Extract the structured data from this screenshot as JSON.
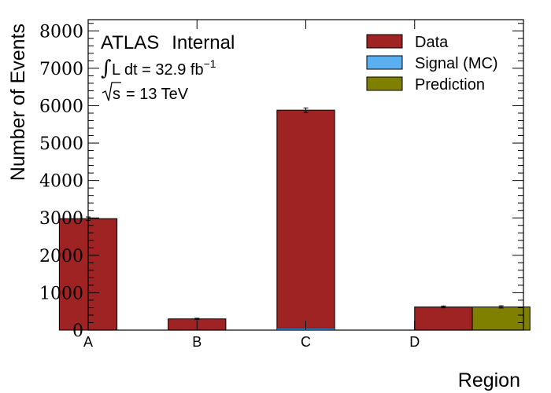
{
  "chart_data": {
    "type": "bar",
    "xlabel": "Region",
    "ylabel": "Number of Events",
    "categories": [
      "A",
      "B",
      "C",
      "D"
    ],
    "ylim": [
      0,
      8300
    ],
    "yticks": [
      0,
      1000,
      2000,
      3000,
      4000,
      5000,
      6000,
      7000,
      8000
    ],
    "series": [
      {
        "name": "Data",
        "color": "#a02323",
        "values": [
          2980,
          300,
          5880,
          620
        ],
        "errors": [
          45,
          18,
          60,
          25
        ]
      },
      {
        "name": "Signal (MC)",
        "color": "#5aaff0",
        "values": [
          0,
          0,
          50,
          0
        ]
      },
      {
        "name": "Prediction",
        "color": "#7f7f00",
        "values": [
          null,
          null,
          null,
          620
        ],
        "errors": [
          null,
          null,
          null,
          30
        ]
      }
    ],
    "annotations": {
      "experiment": "ATLAS",
      "status": "Internal",
      "lumi_prefix": "L dt = 32.9 fb",
      "lumi_exponent": "−1",
      "energy": "= 13 TeV",
      "energy_symbol": "s"
    },
    "legend_position": "top-right"
  }
}
